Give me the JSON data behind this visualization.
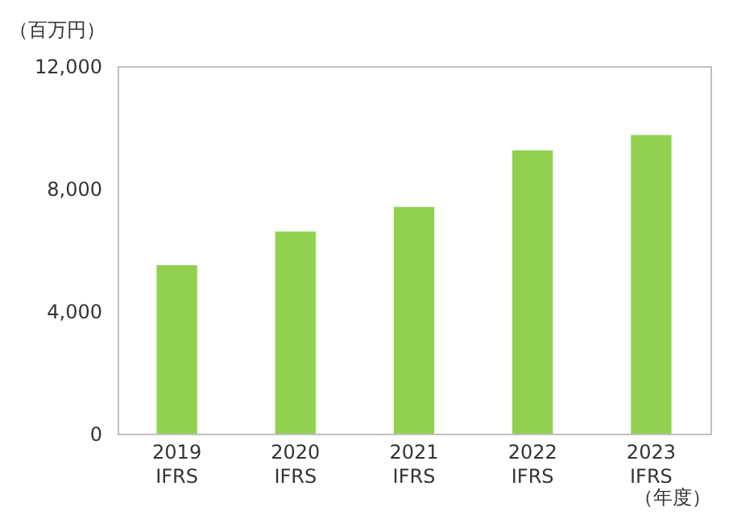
{
  "chart_data": {
    "type": "bar",
    "ylabel": "（百万円）",
    "xlabel": "（年度）",
    "categories": [
      "2019\nIFRS",
      "2020\nIFRS",
      "2021\nIFRS",
      "2022\nIFRS",
      "2023\nIFRS"
    ],
    "values": [
      5500,
      6600,
      7400,
      9250,
      9750
    ],
    "color": "#92d050",
    "ylim": [
      0,
      12000
    ],
    "yticks": [
      {
        "value": 0,
        "label": "0"
      },
      {
        "value": 4000,
        "label": "4,000"
      },
      {
        "value": 8000,
        "label": "8,000"
      },
      {
        "value": 12000,
        "label": "12,000"
      }
    ],
    "grid": false
  }
}
